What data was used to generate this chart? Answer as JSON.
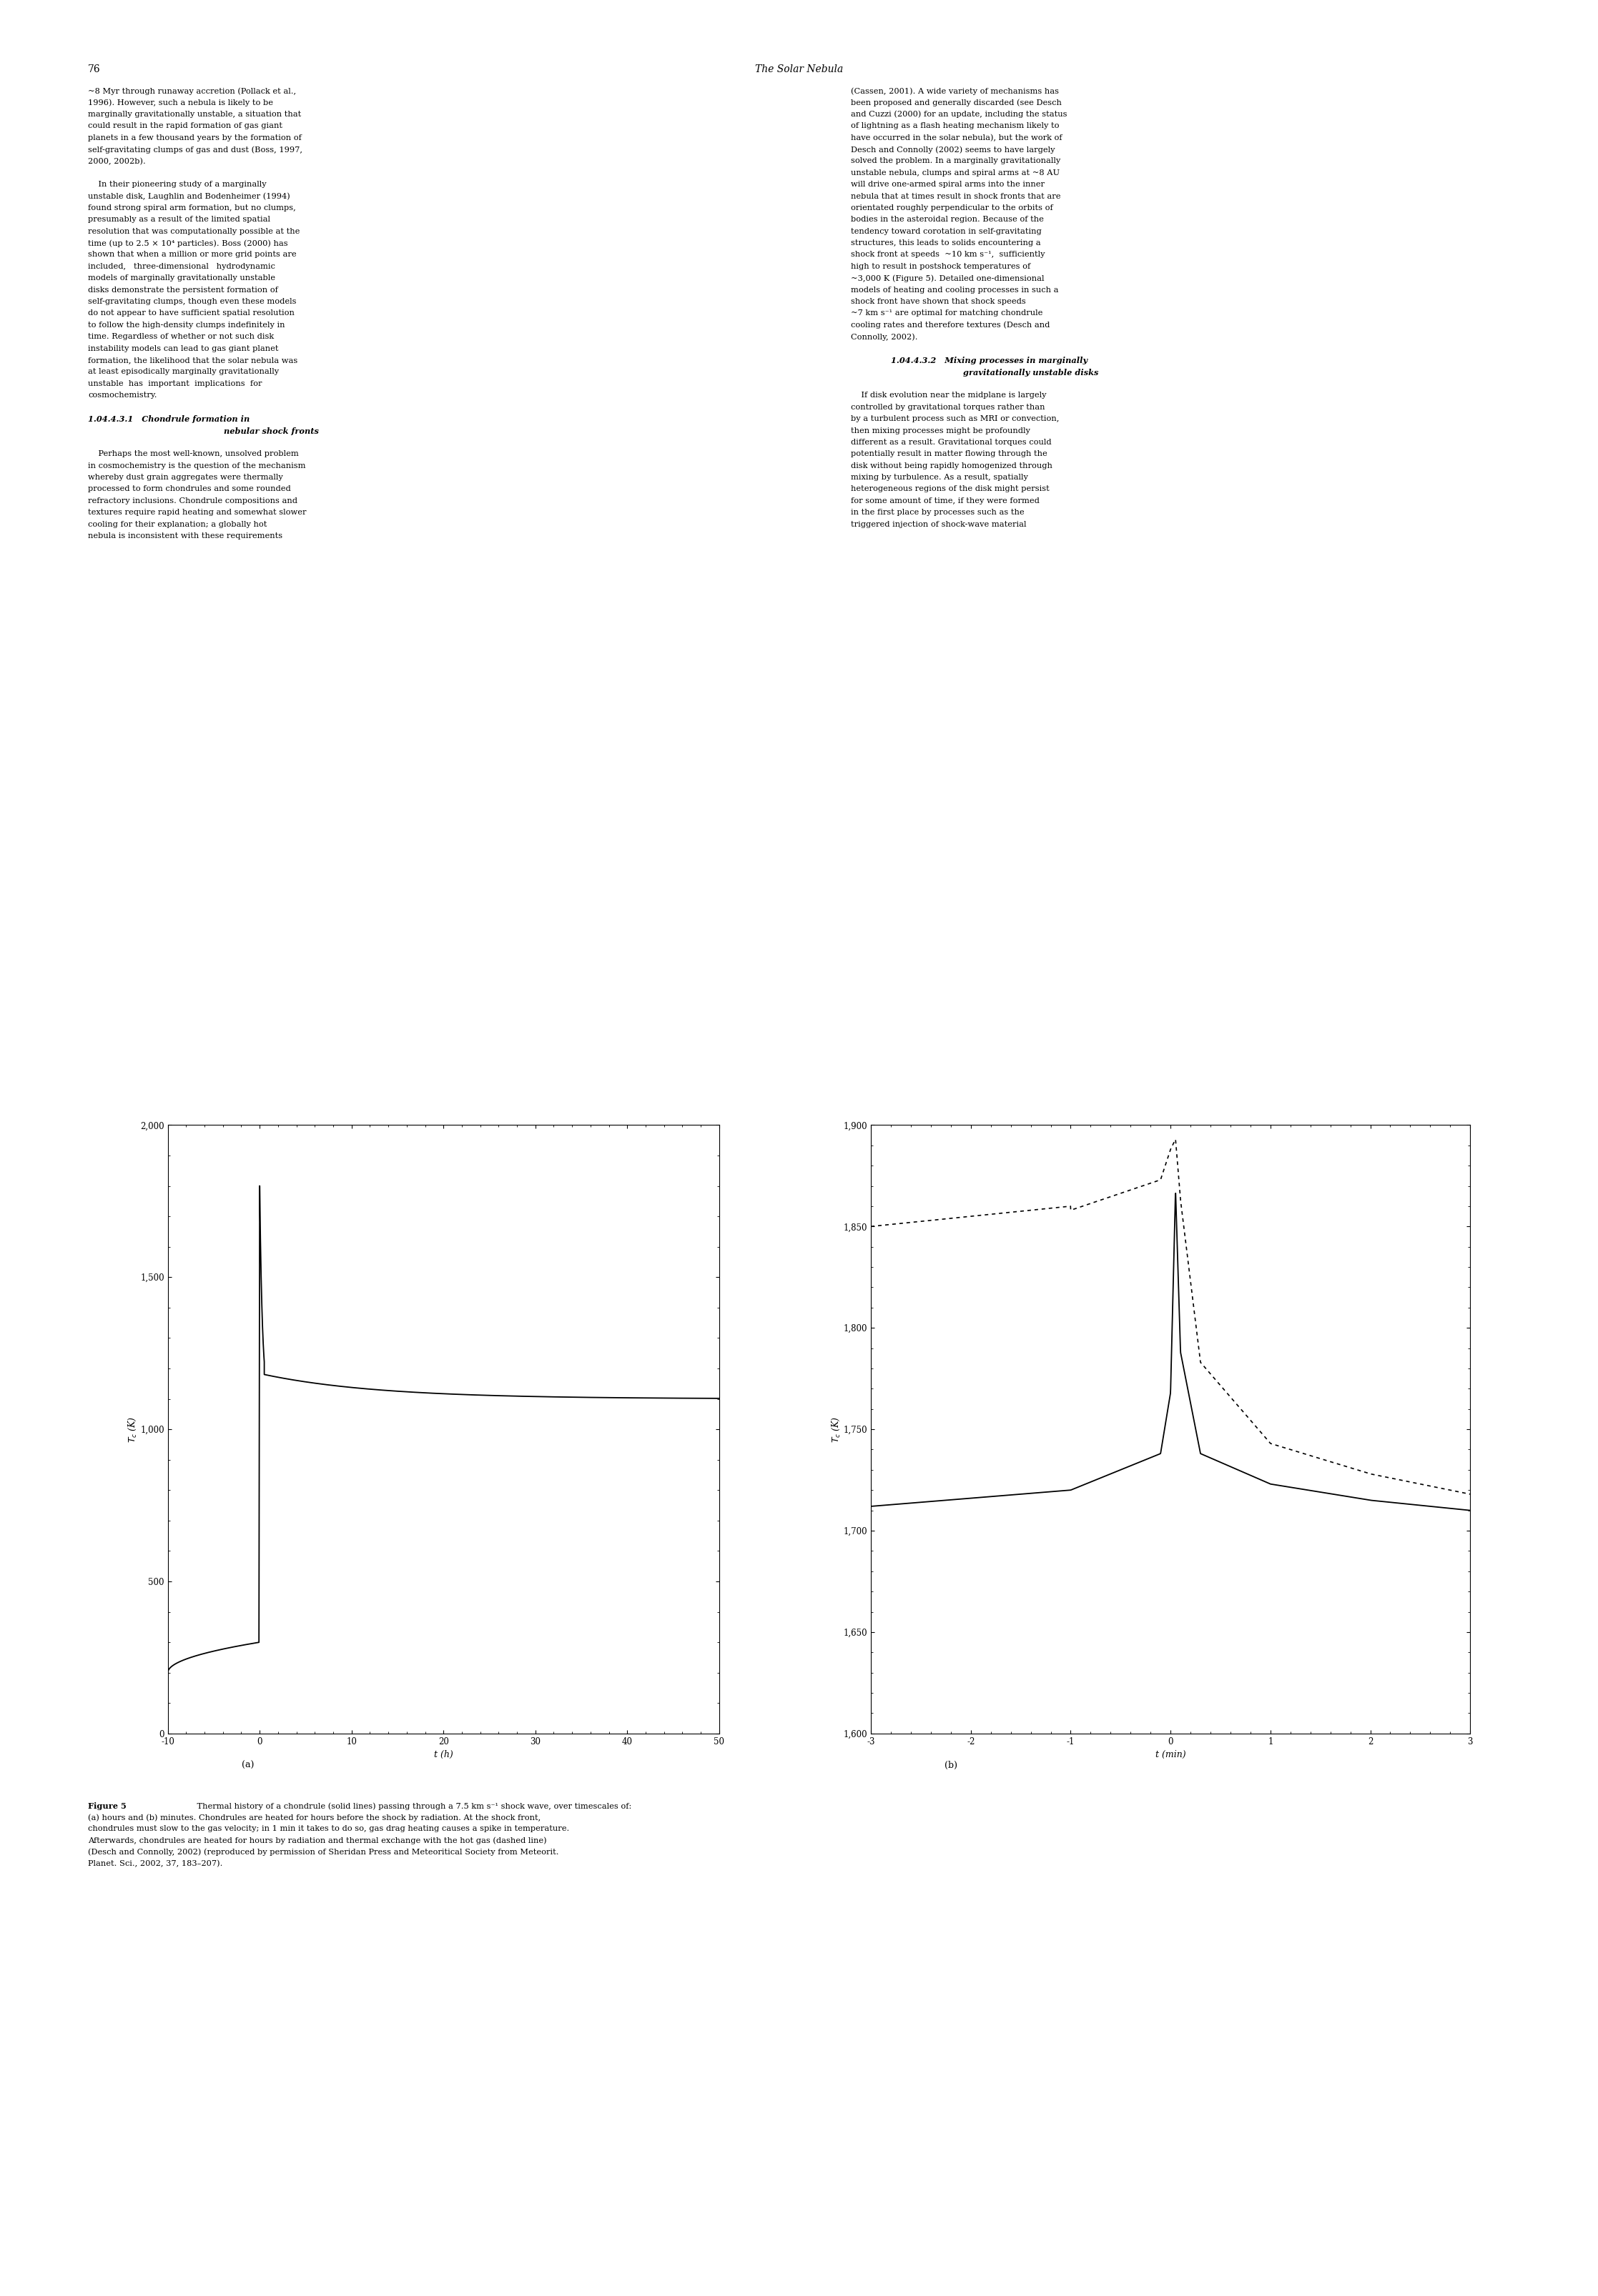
{
  "page_width": 22.35,
  "page_height": 32.13,
  "background_color": "#ffffff",
  "header_text": "76",
  "header_center": "The Solar Nebula",
  "plot_a": {
    "xlim": [
      -10,
      50
    ],
    "ylim": [
      0,
      2000
    ],
    "xticks": [
      -10,
      0,
      10,
      20,
      30,
      40,
      50
    ],
    "yticks": [
      0,
      500,
      1000,
      1500,
      2000
    ],
    "xlabel": "t (h)",
    "ylabel": "T_c (K)",
    "label": "(a)"
  },
  "plot_b": {
    "xlim": [
      -3,
      3
    ],
    "ylim": [
      1600,
      1900
    ],
    "xticks": [
      -3,
      -2,
      -1,
      0,
      1,
      2,
      3
    ],
    "yticks": [
      1600,
      1650,
      1700,
      1750,
      1800,
      1850,
      1900
    ],
    "xlabel": "t (min)",
    "ylabel": "T_c (K)",
    "label": "(b)"
  }
}
